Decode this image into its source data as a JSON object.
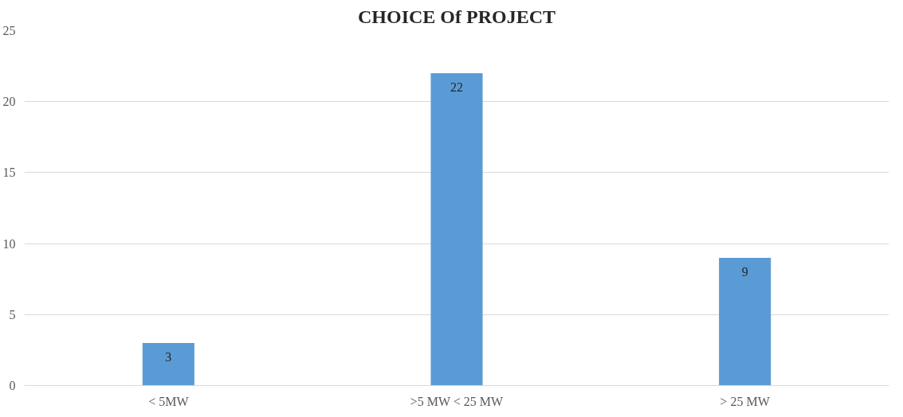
{
  "chart_data": {
    "type": "bar",
    "title": "CHOICE Of PROJECT",
    "categories": [
      "< 5MW",
      ">5 MW < 25 MW",
      "> 25 MW"
    ],
    "values": [
      3,
      22,
      9
    ],
    "color": "#5b9bd5",
    "ylim": [
      0,
      25
    ],
    "yticks": [
      0,
      5,
      10,
      15,
      20,
      25
    ],
    "grid": "y",
    "data_labels": true
  }
}
